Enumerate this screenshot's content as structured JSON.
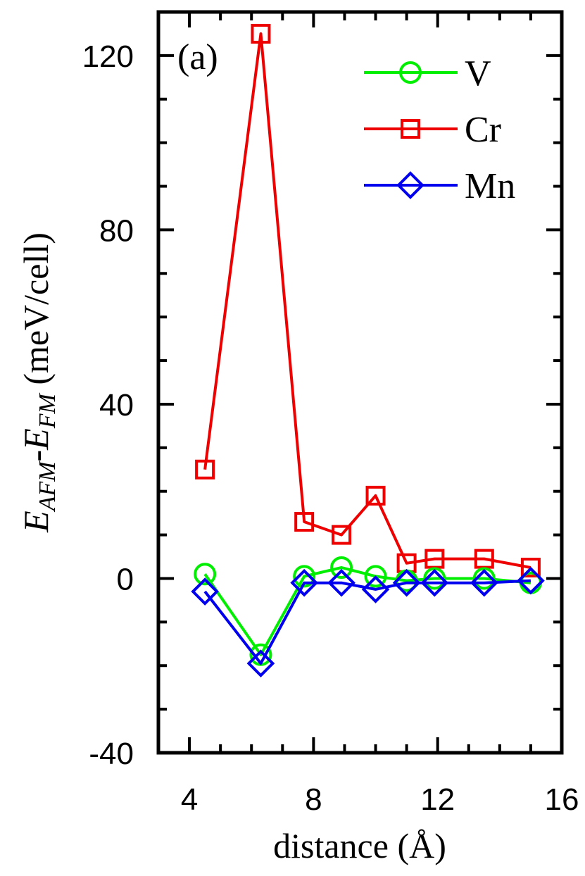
{
  "chart_data": {
    "type": "line",
    "panel_label": "(a)",
    "xlabel": "distance (Å)",
    "ylabel": {
      "main_1": "E",
      "sub_1": "AFM",
      "dash": "-",
      "main_2": "E",
      "sub_2": "FM",
      "units": " (meV/cell)"
    },
    "xlim": [
      3,
      16
    ],
    "ylim": [
      -40,
      130
    ],
    "x_ticks": [
      4,
      8,
      12,
      16
    ],
    "y_ticks": [
      -40,
      0,
      40,
      80,
      120
    ],
    "x_tick_labels": [
      "4",
      "8",
      "12",
      "16"
    ],
    "y_tick_labels": [
      "-40",
      "0",
      "40",
      "80",
      "120"
    ],
    "grid": false,
    "legend_position": "top-right",
    "series": [
      {
        "name": "V",
        "color": "#00ee00",
        "marker": "circle",
        "x": [
          4.5,
          6.3,
          7.7,
          8.9,
          10.0,
          11.0,
          11.9,
          13.5,
          15.0
        ],
        "y": [
          1,
          -17.5,
          0.5,
          2.5,
          0.5,
          -0.5,
          0,
          0,
          -1
        ]
      },
      {
        "name": "Cr",
        "color": "#ee0000",
        "marker": "square",
        "x": [
          4.5,
          6.3,
          7.7,
          8.9,
          10.0,
          11.0,
          11.9,
          13.5,
          15.0
        ],
        "y": [
          25,
          125,
          13,
          10,
          19,
          3.5,
          4.5,
          4.5,
          2.5
        ]
      },
      {
        "name": "Mn",
        "color": "#0000ee",
        "marker": "diamond",
        "x": [
          4.5,
          6.3,
          7.7,
          8.9,
          10.0,
          11.0,
          11.9,
          13.5,
          15.0
        ],
        "y": [
          -3,
          -19.5,
          -1,
          -1,
          -2.5,
          -1,
          -1,
          -1,
          -0.5
        ]
      }
    ]
  }
}
